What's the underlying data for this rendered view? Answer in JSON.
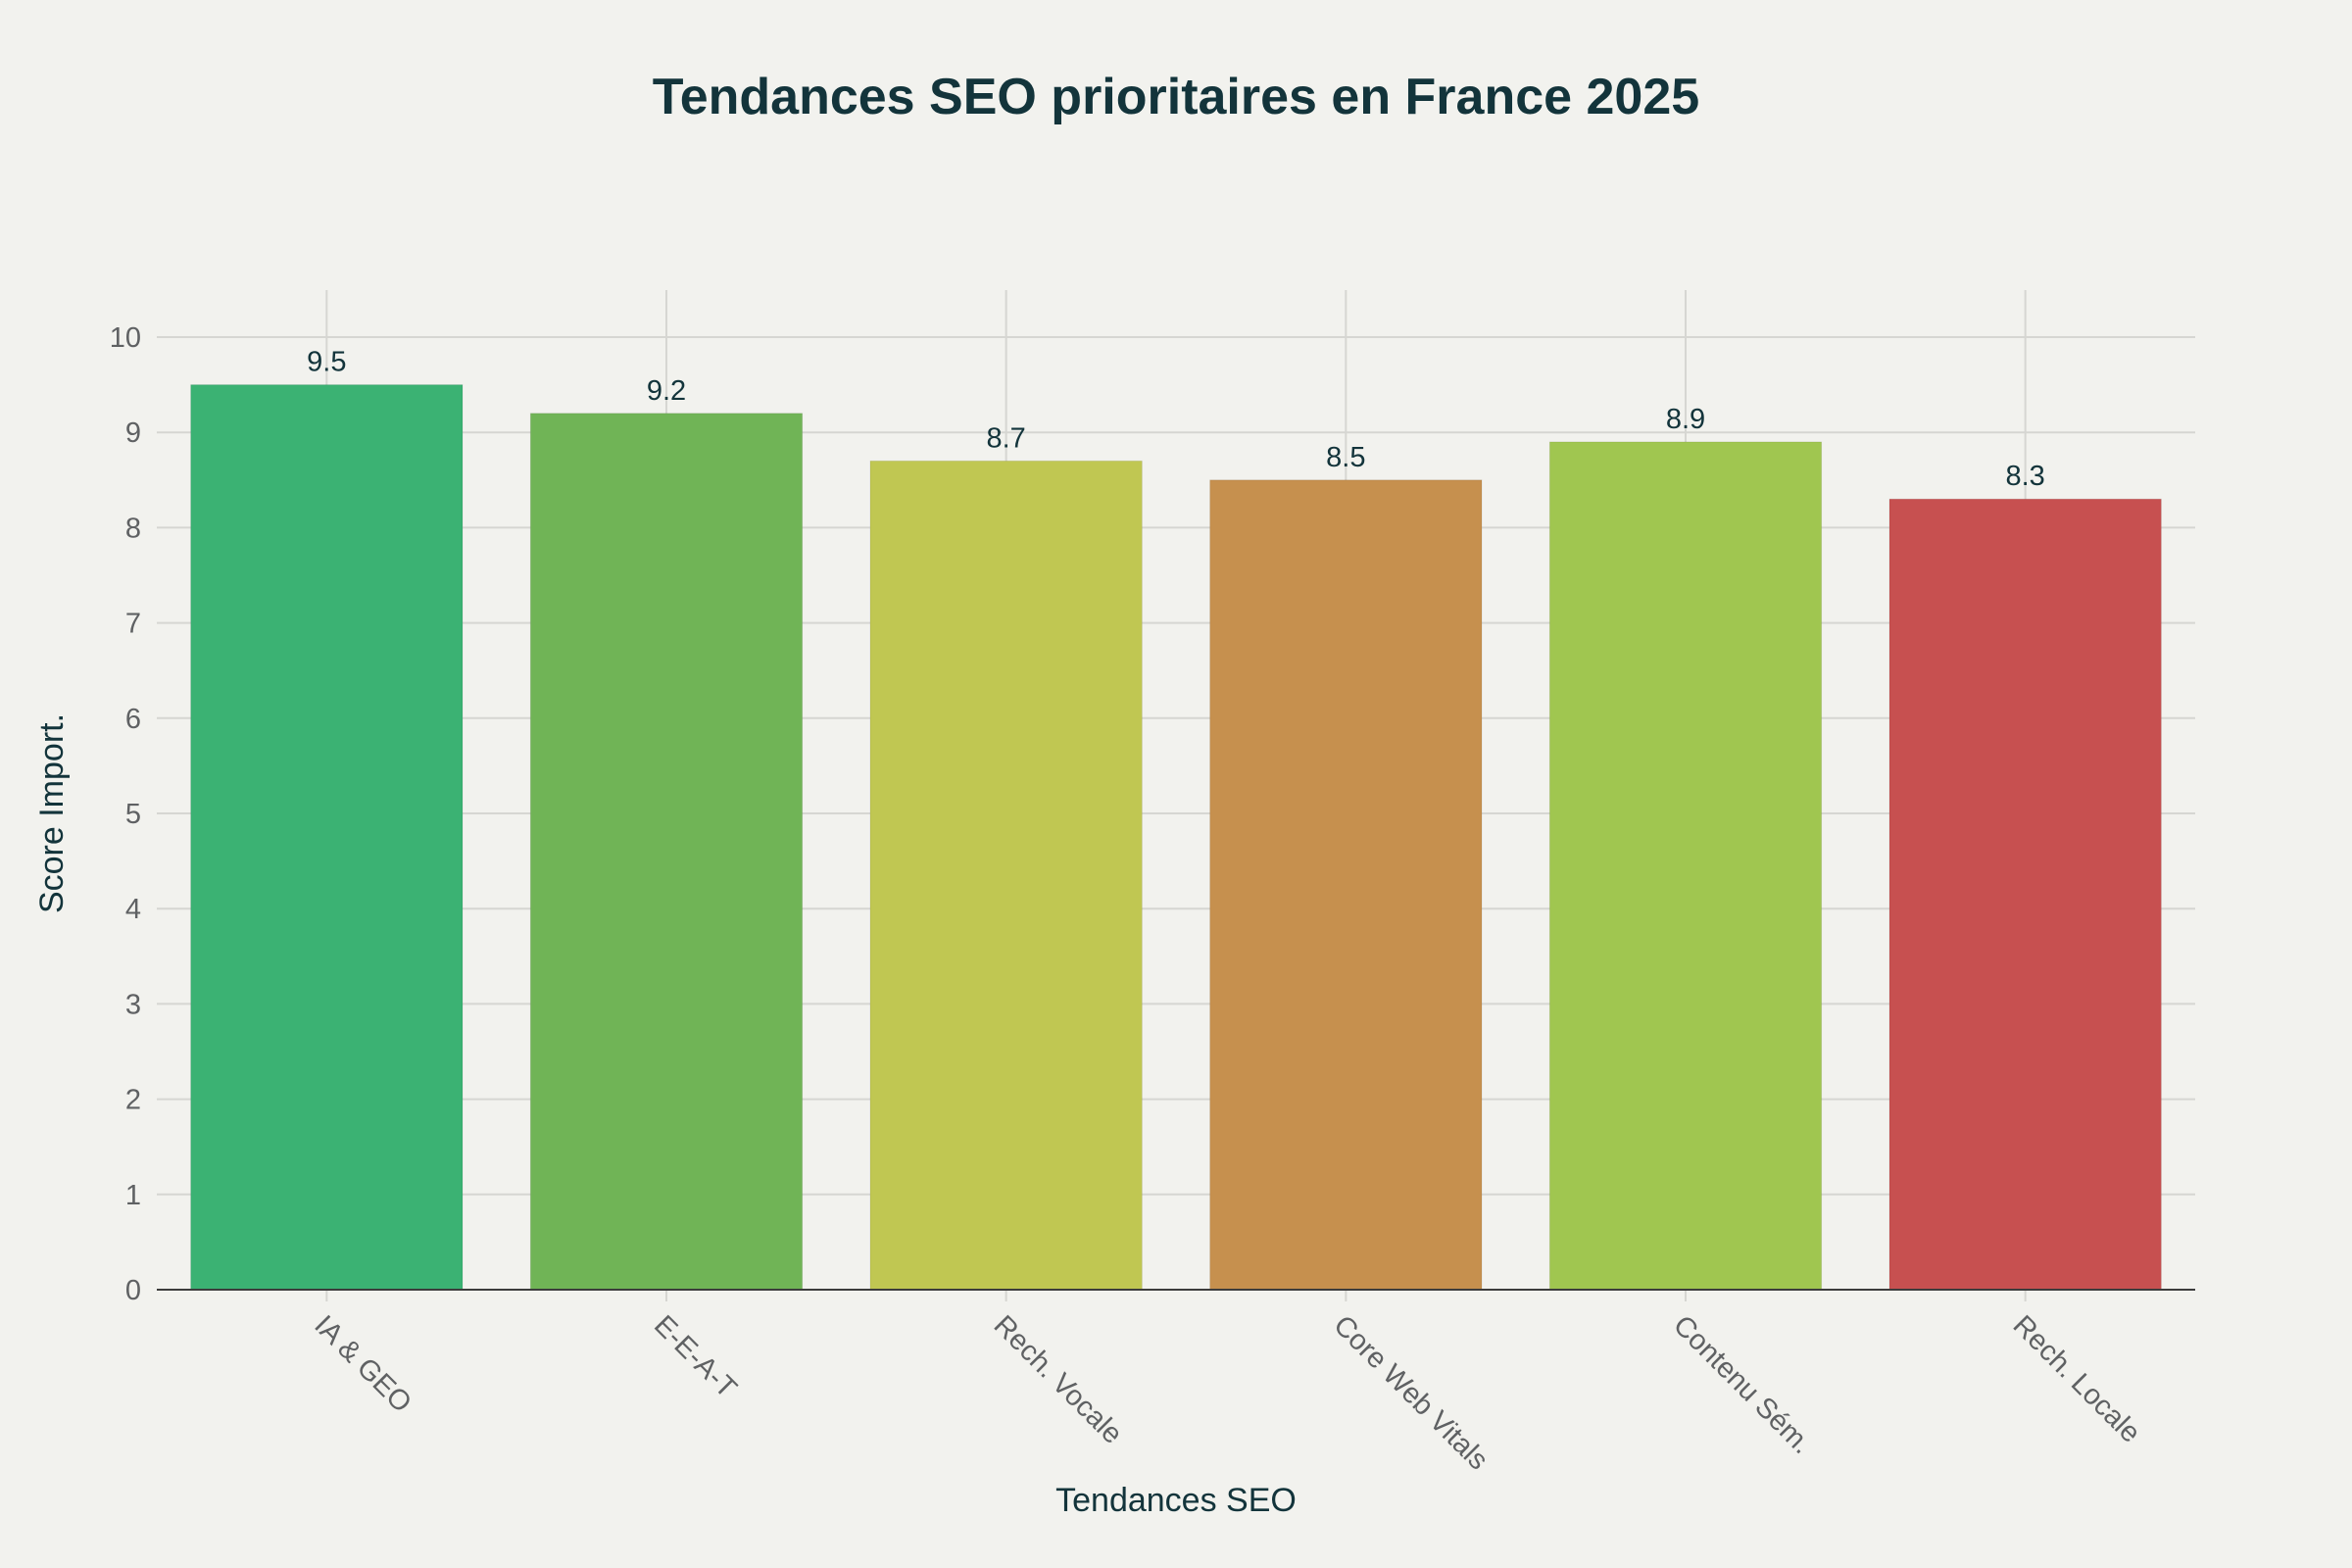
{
  "chart_data": {
    "type": "bar",
    "title": "Tendances SEO prioritaires en France 2025",
    "xlabel": "Tendances SEO",
    "ylabel": "Score Import.",
    "categories": [
      "IA & GEO",
      "E-E-A-T",
      "Rech. Vocale",
      "Core Web Vitals",
      "Contenu Sém.",
      "Rech. Locale"
    ],
    "values": [
      9.5,
      9.2,
      8.7,
      8.5,
      8.9,
      8.3
    ],
    "data_labels": [
      "9.5",
      "9.2",
      "8.7",
      "8.5",
      "8.9",
      "8.3"
    ],
    "colors": [
      "#3bb273",
      "#70b456",
      "#c0c752",
      "#c6904e",
      "#a0c650",
      "#c75050"
    ],
    "ylim": [
      0,
      10
    ],
    "yticks": [
      "0",
      "1",
      "2",
      "3",
      "4",
      "5",
      "6",
      "7",
      "8",
      "9",
      "10"
    ],
    "grid": true,
    "legend": "none"
  }
}
